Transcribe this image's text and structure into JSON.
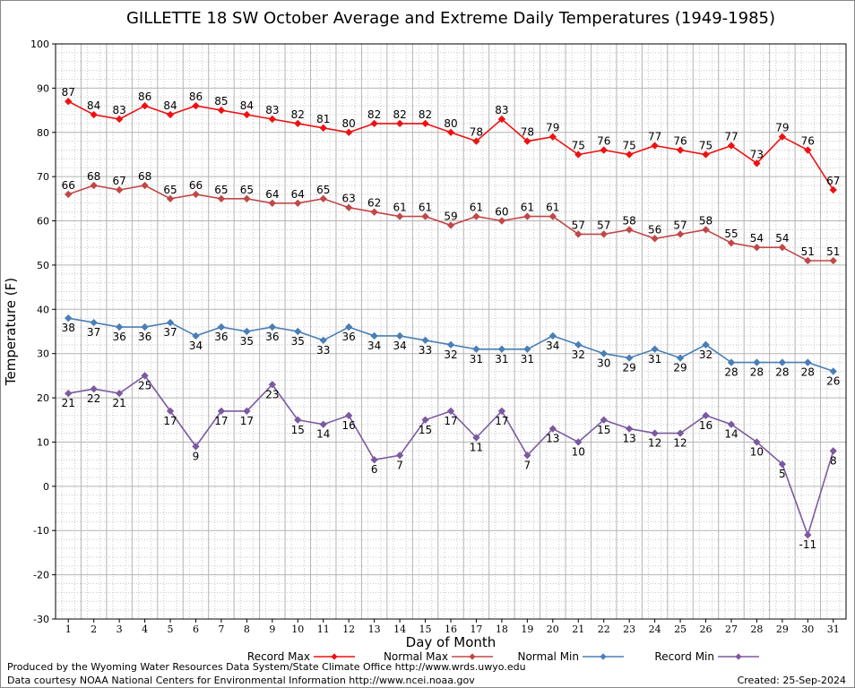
{
  "chart_data": {
    "type": "line",
    "title": "GILLETTE 18 SW October Average and Extreme Daily Temperatures (1949-1985)",
    "xlabel": "Day of Month",
    "ylabel": "Temperature (F)",
    "ylim": [
      -30,
      100
    ],
    "yticks": [
      -30,
      -20,
      -10,
      0,
      10,
      20,
      30,
      40,
      50,
      60,
      70,
      80,
      90,
      100
    ],
    "categories": [
      1,
      2,
      3,
      4,
      5,
      6,
      7,
      8,
      9,
      10,
      11,
      12,
      13,
      14,
      15,
      16,
      17,
      18,
      19,
      20,
      21,
      22,
      23,
      24,
      25,
      26,
      27,
      28,
      29,
      30,
      31
    ],
    "grid": true,
    "legend_position": "bottom",
    "series": [
      {
        "name": "Record Max",
        "color": "#ee1111",
        "label_position": "above",
        "values": [
          87,
          84,
          83,
          86,
          84,
          86,
          85,
          84,
          83,
          82,
          81,
          80,
          82,
          82,
          82,
          80,
          78,
          83,
          78,
          79,
          75,
          76,
          75,
          77,
          76,
          75,
          77,
          73,
          79,
          76,
          67
        ]
      },
      {
        "name": "Normal Max",
        "color": "#c04848",
        "label_position": "above",
        "values": [
          66,
          68,
          67,
          68,
          65,
          66,
          65,
          65,
          64,
          64,
          65,
          63,
          62,
          61,
          61,
          59,
          61,
          60,
          61,
          61,
          57,
          57,
          58,
          56,
          57,
          58,
          55,
          54,
          54,
          51,
          51
        ]
      },
      {
        "name": "Normal Min",
        "color": "#4a7eb6",
        "label_position": "below",
        "values": [
          38,
          37,
          36,
          36,
          37,
          34,
          36,
          35,
          36,
          35,
          33,
          36,
          34,
          34,
          33,
          32,
          31,
          31,
          31,
          34,
          32,
          30,
          29,
          31,
          29,
          32,
          28,
          28,
          28,
          28,
          26
        ]
      },
      {
        "name": "Record Min",
        "color": "#7b5aa0",
        "label_position": "below",
        "values": [
          21,
          22,
          21,
          25,
          17,
          9,
          17,
          17,
          23,
          15,
          14,
          16,
          6,
          7,
          15,
          17,
          11,
          17,
          7,
          13,
          10,
          15,
          13,
          12,
          12,
          16,
          14,
          10,
          5,
          -11,
          8
        ]
      }
    ]
  },
  "footer": {
    "produced_by": "Produced by the Wyoming Water Resources Data System/State Climate Office http://www.wrds.uwyo.edu",
    "courtesy": "Data courtesy NOAA National Centers for Environmental Information http://www.ncei.noaa.gov",
    "created": "Created:  25-Sep-2024"
  }
}
